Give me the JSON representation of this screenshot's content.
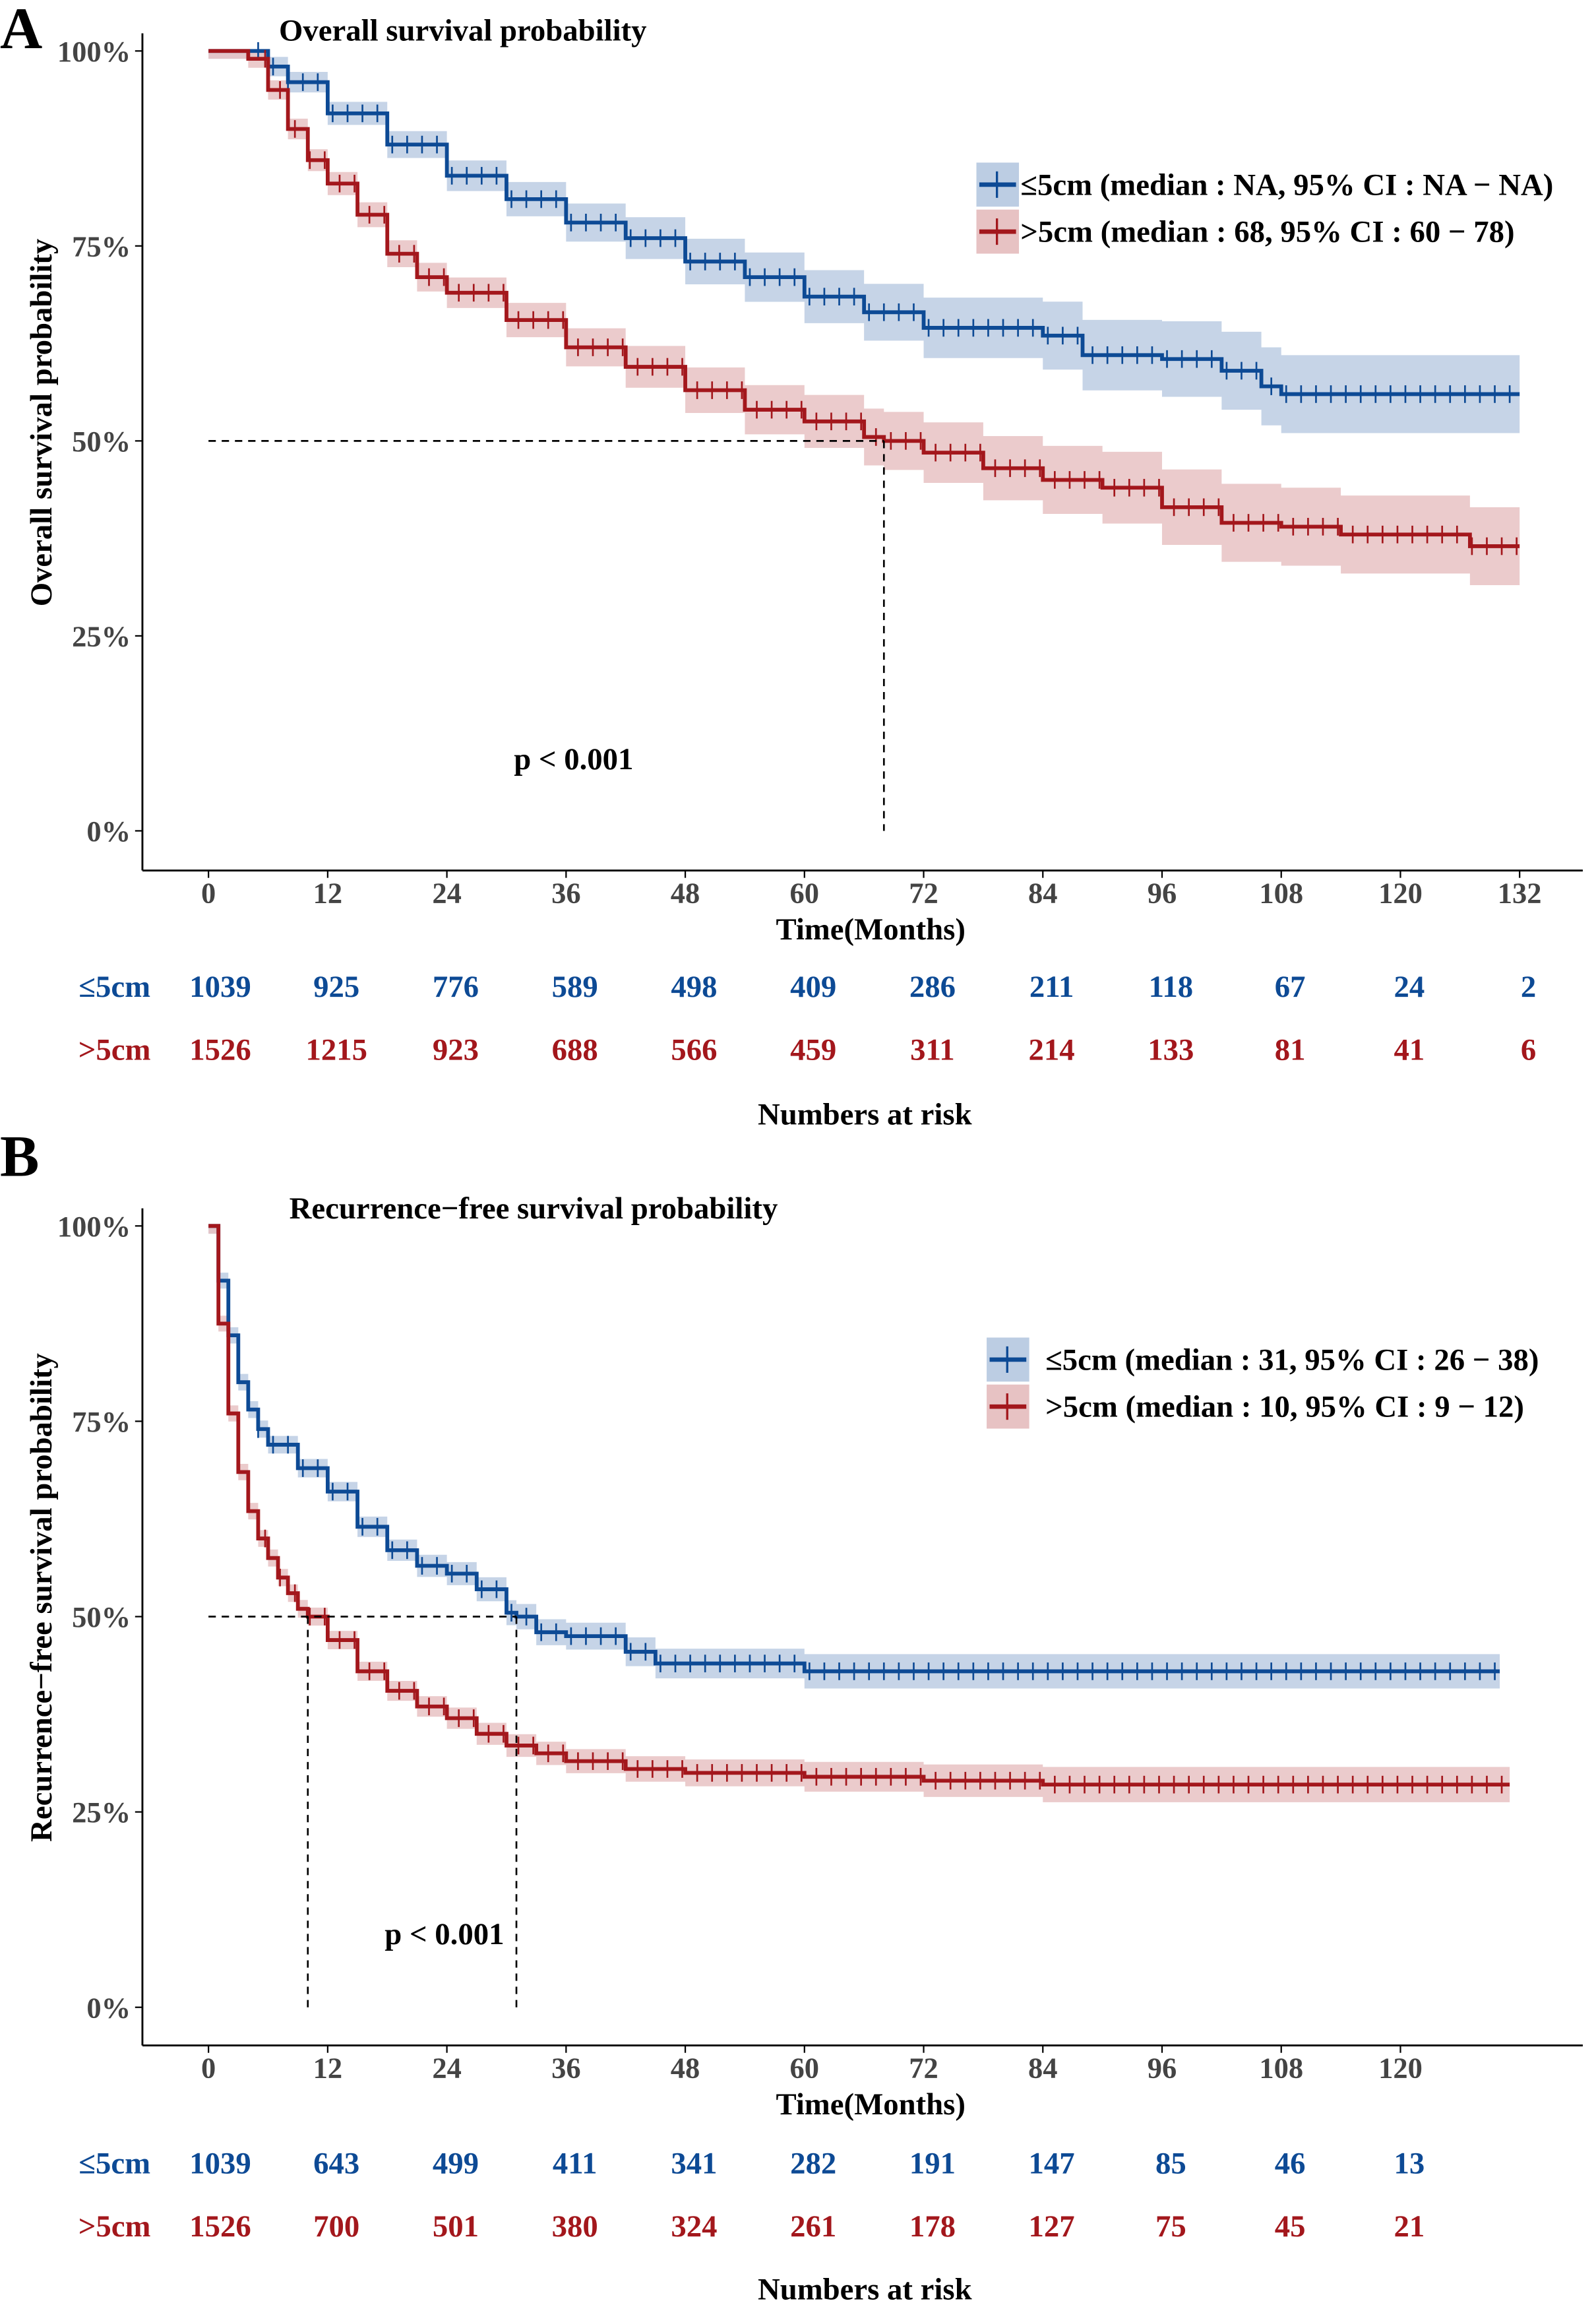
{
  "colors": {
    "le5": "#0d4a95",
    "gt5": "#a3171c",
    "le5_band": "#bccde3",
    "gt5_band": "#e7c2c3"
  },
  "chart_data": [
    {
      "panel_label": "A",
      "type": "line",
      "title": "Overall survival probability",
      "xlabel": "Time(Months)",
      "ylabel": "Overall survival probability",
      "xlim": [
        0,
        132
      ],
      "ylim": [
        0,
        1
      ],
      "x_ticks": [
        0,
        12,
        24,
        36,
        48,
        60,
        72,
        84,
        96,
        108,
        120,
        132
      ],
      "y_ticks": [
        "0%",
        "25%",
        "50%",
        "75%",
        "100%"
      ],
      "pvalue": "p < 0.001",
      "medians": [
        68
      ],
      "legend_position": "top-right",
      "series": [
        {
          "name": "≤5cm (median : NA, 95% CI : NA − NA)",
          "group": "≤5cm",
          "color_key": "le5",
          "ci_halfwidth": [
            0.01,
            0.05
          ],
          "points": [
            [
              0,
              1
            ],
            [
              4,
              1
            ],
            [
              6,
              0.98
            ],
            [
              8,
              0.96
            ],
            [
              12,
              0.92
            ],
            [
              18,
              0.88
            ],
            [
              24,
              0.84
            ],
            [
              30,
              0.81
            ],
            [
              36,
              0.78
            ],
            [
              42,
              0.76
            ],
            [
              48,
              0.73
            ],
            [
              54,
              0.71
            ],
            [
              60,
              0.685
            ],
            [
              66,
              0.665
            ],
            [
              72,
              0.645
            ],
            [
              84,
              0.635
            ],
            [
              88,
              0.61
            ],
            [
              96,
              0.605
            ],
            [
              102,
              0.59
            ],
            [
              106,
              0.57
            ],
            [
              108,
              0.56
            ],
            [
              132,
              0.56
            ]
          ]
        },
        {
          "name": ">5cm (median : 68, 95% CI : 60 − 78)",
          "group": ">5cm",
          "color_key": "gt5",
          "ci_halfwidth": [
            0.01,
            0.05
          ],
          "points": [
            [
              0,
              1
            ],
            [
              4,
              0.99
            ],
            [
              6,
              0.95
            ],
            [
              8,
              0.9
            ],
            [
              10,
              0.86
            ],
            [
              12,
              0.83
            ],
            [
              15,
              0.79
            ],
            [
              18,
              0.74
            ],
            [
              21,
              0.71
            ],
            [
              24,
              0.69
            ],
            [
              30,
              0.655
            ],
            [
              36,
              0.62
            ],
            [
              42,
              0.595
            ],
            [
              48,
              0.565
            ],
            [
              54,
              0.54
            ],
            [
              60,
              0.525
            ],
            [
              66,
              0.505
            ],
            [
              68,
              0.5
            ],
            [
              72,
              0.485
            ],
            [
              78,
              0.465
            ],
            [
              84,
              0.45
            ],
            [
              90,
              0.44
            ],
            [
              96,
              0.415
            ],
            [
              102,
              0.395
            ],
            [
              108,
              0.39
            ],
            [
              114,
              0.38
            ],
            [
              126,
              0.38
            ],
            [
              127,
              0.365
            ],
            [
              132,
              0.365
            ]
          ]
        }
      ],
      "risk_table": {
        "title": "Numbers at risk",
        "times": [
          0,
          12,
          24,
          36,
          48,
          60,
          72,
          84,
          96,
          108,
          120,
          132
        ],
        "rows": [
          {
            "label": "≤5cm",
            "color_key": "le5",
            "values": [
              "1039",
              "925",
              "776",
              "589",
              "498",
              "409",
              "286",
              "211",
              "118",
              "67",
              "24",
              "2"
            ]
          },
          {
            "label": ">5cm",
            "color_key": "gt5",
            "values": [
              "1526",
              "1215",
              "923",
              "688",
              "566",
              "459",
              "311",
              "214",
              "133",
              "81",
              "41",
              "6"
            ]
          }
        ]
      }
    },
    {
      "panel_label": "B",
      "type": "line",
      "title": "Recurrence−free survival probability",
      "xlabel": "Time(Months)",
      "ylabel": "Recurrence−free survival probability",
      "xlim": [
        0,
        132
      ],
      "ylim": [
        0,
        1
      ],
      "x_ticks": [
        0,
        12,
        24,
        36,
        48,
        60,
        72,
        84,
        96,
        108,
        120
      ],
      "y_ticks": [
        "0%",
        "25%",
        "50%",
        "75%",
        "100%"
      ],
      "pvalue": "p < 0.001",
      "medians": [
        10,
        31
      ],
      "legend_position": "top-right",
      "series": [
        {
          "name": "≤5cm (median : 31, 95% CI : 26 − 38)",
          "group": "≤5cm",
          "color_key": "le5",
          "ci_halfwidth": [
            0.01,
            0.03
          ],
          "points": [
            [
              0,
              1
            ],
            [
              1,
              0.93
            ],
            [
              2,
              0.86
            ],
            [
              3,
              0.8
            ],
            [
              4,
              0.765
            ],
            [
              5,
              0.74
            ],
            [
              6,
              0.72
            ],
            [
              9,
              0.69
            ],
            [
              12,
              0.66
            ],
            [
              15,
              0.615
            ],
            [
              18,
              0.585
            ],
            [
              21,
              0.565
            ],
            [
              24,
              0.555
            ],
            [
              27,
              0.535
            ],
            [
              30,
              0.505
            ],
            [
              31,
              0.5
            ],
            [
              33,
              0.48
            ],
            [
              36,
              0.475
            ],
            [
              42,
              0.455
            ],
            [
              45,
              0.44
            ],
            [
              60,
              0.43
            ],
            [
              130,
              0.43
            ]
          ]
        },
        {
          "name": ">5cm (median : 10, 95% CI : 9 − 12)",
          "group": ">5cm",
          "color_key": "gt5",
          "ci_halfwidth": [
            0.01,
            0.025
          ],
          "points": [
            [
              0,
              1
            ],
            [
              1,
              0.875
            ],
            [
              2,
              0.76
            ],
            [
              3,
              0.685
            ],
            [
              4,
              0.635
            ],
            [
              5,
              0.6
            ],
            [
              6,
              0.575
            ],
            [
              7,
              0.55
            ],
            [
              8,
              0.53
            ],
            [
              9,
              0.51
            ],
            [
              10,
              0.5
            ],
            [
              12,
              0.47
            ],
            [
              15,
              0.43
            ],
            [
              18,
              0.405
            ],
            [
              21,
              0.385
            ],
            [
              24,
              0.37
            ],
            [
              27,
              0.35
            ],
            [
              30,
              0.335
            ],
            [
              33,
              0.325
            ],
            [
              36,
              0.315
            ],
            [
              42,
              0.305
            ],
            [
              48,
              0.3
            ],
            [
              60,
              0.295
            ],
            [
              72,
              0.29
            ],
            [
              84,
              0.285
            ],
            [
              131,
              0.285
            ]
          ]
        }
      ],
      "risk_table": {
        "title": "Numbers at risk",
        "times": [
          0,
          12,
          24,
          36,
          48,
          60,
          72,
          84,
          96,
          108,
          120
        ],
        "rows": [
          {
            "label": "≤5cm",
            "color_key": "le5",
            "values": [
              "1039",
              "643",
              "499",
              "411",
              "341",
              "282",
              "191",
              "147",
              "85",
              "46",
              "13"
            ]
          },
          {
            "label": ">5cm",
            "color_key": "gt5",
            "values": [
              "1526",
              "700",
              "501",
              "380",
              "324",
              "261",
              "178",
              "127",
              "75",
              "45",
              "21"
            ]
          }
        ]
      }
    }
  ]
}
